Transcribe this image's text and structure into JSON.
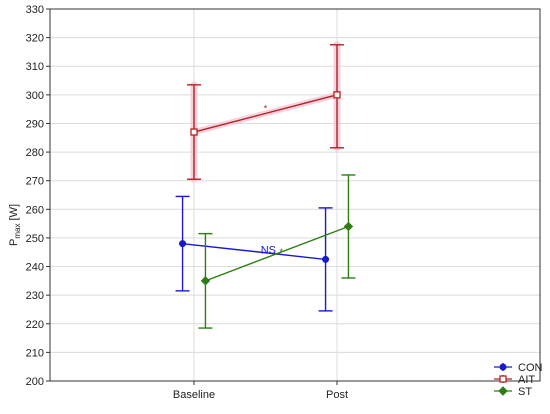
{
  "chart_data": {
    "type": "line",
    "title": "",
    "ylabel_main": "P",
    "ylabel_sub": "max",
    "ylabel_unit": " [W]",
    "categories": [
      "Baseline",
      "Post"
    ],
    "ylim": [
      200,
      330
    ],
    "yticks": [
      200,
      210,
      220,
      230,
      240,
      250,
      260,
      270,
      280,
      290,
      300,
      310,
      320,
      330
    ],
    "grid": true,
    "legend_position": "bottom-right",
    "series": [
      {
        "name": "CON",
        "color": "#1a1acc",
        "marker": "circle",
        "offset": -0.08,
        "values": [
          248,
          242.5
        ],
        "lower": [
          231.5,
          224.5
        ],
        "upper": [
          264.5,
          260.5
        ]
      },
      {
        "name": "AIT",
        "color": "#b22222",
        "marker": "square",
        "offset": 0.0,
        "values": [
          287,
          300
        ],
        "lower": [
          270.5,
          281.5
        ],
        "upper": [
          303.5,
          317.5
        ]
      },
      {
        "name": "ST",
        "color": "#2e7d14",
        "marker": "diamond",
        "offset": 0.08,
        "values": [
          235,
          254
        ],
        "lower": [
          218.5,
          236
        ],
        "upper": [
          251.5,
          272
        ]
      }
    ],
    "annotations": [
      {
        "text": "NS",
        "x": 0.52,
        "y": 246,
        "color": "#1a1acc",
        "size": "normal"
      },
      {
        "text": "*",
        "x": 0.61,
        "y": 245.5,
        "color": "#2e7d14",
        "size": "small"
      },
      {
        "text": "*",
        "x": 0.5,
        "y": 295.5,
        "color": "#b22222",
        "size": "small"
      }
    ]
  }
}
